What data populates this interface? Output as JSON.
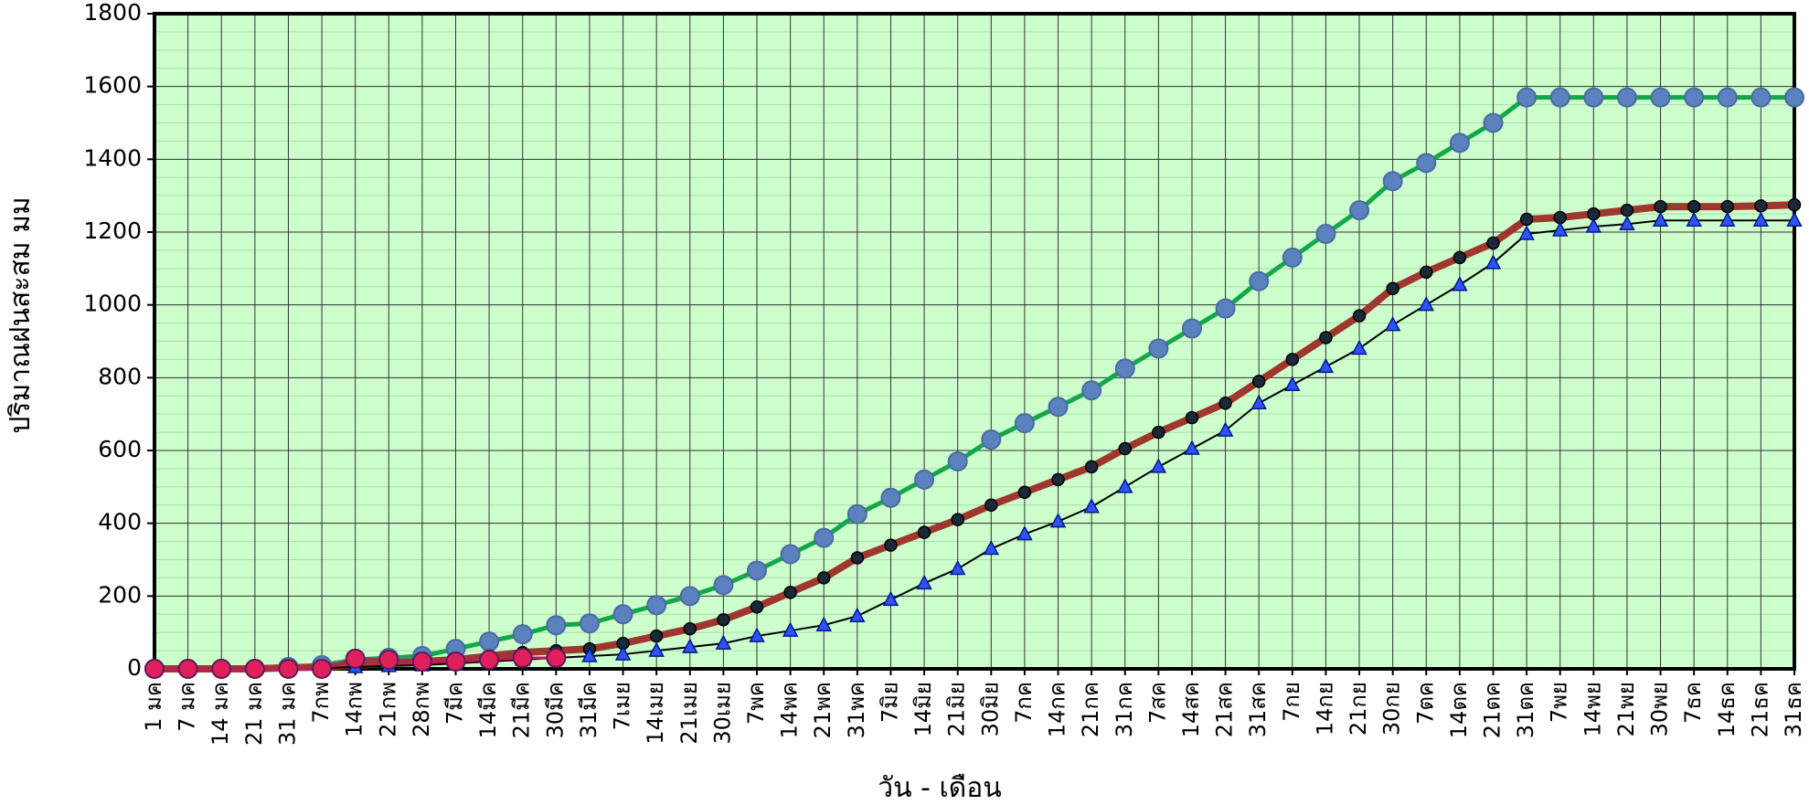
{
  "chart_data": {
    "type": "line",
    "y_label": "ปริมาณฝนสะสม  มม",
    "x_label": "วัน - เดือน",
    "categories": [
      "1 มค",
      "7 มค",
      "14 มค",
      "21 มค",
      "31 มค",
      "7กพ",
      "14กพ",
      "21กพ",
      "28กพ",
      "7มีค",
      "14มีค",
      "21มีค",
      "30มีค",
      "31มีค",
      "7เมย",
      "14เมย",
      "21เมย",
      "30เมย",
      "7พค",
      "14พค",
      "21พค",
      "31พค",
      "7มิย",
      "14มิย",
      "21มิย",
      "30มิย",
      "7กค",
      "14กค",
      "21กค",
      "31กค",
      "7สค",
      "14สค",
      "21สค",
      "31สค",
      "7กย",
      "14กย",
      "21กย",
      "30กย",
      "7ตค",
      "14ตค",
      "21ตค",
      "31ตค",
      "7พย",
      "14พย",
      "21พย",
      "30พย",
      "7ธค",
      "14ธค",
      "21ธค",
      "31ธค"
    ],
    "series": [
      {
        "color": "#12a84a",
        "marker": "circle",
        "marker_color": "#5b82bf",
        "values": [
          0,
          0,
          0,
          0,
          5,
          10,
          25,
          30,
          35,
          55,
          75,
          95,
          120,
          125,
          150,
          175,
          200,
          230,
          270,
          315,
          360,
          425,
          470,
          520,
          570,
          630,
          675,
          720,
          765,
          825,
          880,
          935,
          990,
          1065,
          1130,
          1195,
          1260,
          1340,
          1390,
          1445,
          1500,
          1570,
          1570,
          1570,
          1570,
          1570,
          1570,
          1570,
          1570,
          1570
        ]
      },
      {
        "color": "#a0372f",
        "marker": "dot",
        "marker_color": "#1b2838",
        "values": [
          0,
          0,
          0,
          0,
          3,
          5,
          10,
          15,
          20,
          25,
          35,
          45,
          50,
          55,
          70,
          90,
          110,
          135,
          170,
          210,
          250,
          305,
          340,
          375,
          410,
          450,
          485,
          520,
          555,
          605,
          650,
          690,
          730,
          790,
          850,
          910,
          970,
          1045,
          1090,
          1130,
          1170,
          1235,
          1240,
          1250,
          1260,
          1270,
          1270,
          1270,
          1272,
          1275
        ]
      },
      {
        "color": "#000000",
        "marker": "triangle",
        "marker_color": "#2f52ff",
        "values": [
          0,
          0,
          0,
          0,
          0,
          2,
          5,
          8,
          10,
          15,
          20,
          25,
          30,
          35,
          40,
          50,
          60,
          70,
          90,
          105,
          120,
          145,
          190,
          235,
          275,
          330,
          370,
          405,
          445,
          500,
          555,
          605,
          655,
          730,
          780,
          830,
          880,
          945,
          1000,
          1055,
          1115,
          1195,
          1205,
          1215,
          1222,
          1232,
          1232,
          1232,
          1232,
          1232
        ]
      },
      {
        "color": "#c01860",
        "marker": "circle",
        "marker_color": "#e0205a",
        "values": [
          0,
          0,
          0,
          0,
          0,
          0,
          28,
          25,
          20,
          20,
          25,
          30,
          30,
          null,
          null,
          null,
          null,
          null,
          null,
          null,
          null,
          null,
          null,
          null,
          null,
          null,
          null,
          null,
          null,
          null,
          null,
          null,
          null,
          null,
          null,
          null,
          null,
          null,
          null,
          null,
          null,
          null,
          null,
          null,
          null,
          null,
          null,
          null,
          null,
          null
        ]
      }
    ],
    "ylim": [
      0,
      1800
    ],
    "yticks": [
      0,
      200,
      400,
      600,
      800,
      1000,
      1200,
      1400,
      1600,
      1800
    ],
    "grid": true,
    "plot_background": "#ccffcc"
  }
}
